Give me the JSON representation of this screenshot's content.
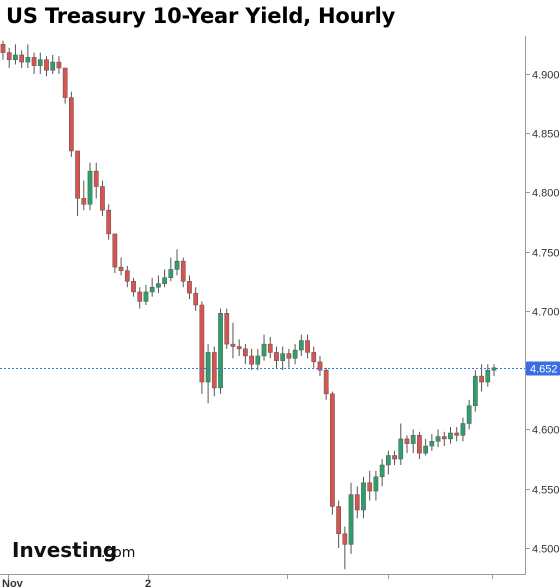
{
  "chart_data": {
    "type": "candlestick",
    "title": "US Treasury 10-Year Yield, Hourly",
    "ylim": [
      4.478,
      4.932
    ],
    "y_ticks": [
      4.5,
      4.55,
      4.6,
      4.65,
      4.7,
      4.75,
      4.8,
      4.85,
      4.9
    ],
    "y_tick_labels": [
      "4.500",
      "4.550",
      "4.600",
      "4.650",
      "4.700",
      "4.750",
      "4.800",
      "4.850",
      "4.900"
    ],
    "x_labels": [
      "Nov",
      "2"
    ],
    "current_value": 4.652,
    "current_label": "4.652",
    "colors": {
      "up": "#2e9e6a",
      "down": "#d9534f",
      "current_line": "#3b6fe0",
      "axis": "#9a9a9a"
    },
    "grid": false,
    "candles": [
      [
        4.925,
        4.918,
        4.928,
        4.912
      ],
      [
        4.918,
        4.912,
        4.922,
        4.905
      ],
      [
        4.912,
        4.916,
        4.925,
        4.908
      ],
      [
        4.916,
        4.91,
        4.92,
        4.905
      ],
      [
        4.91,
        4.914,
        4.925,
        4.905
      ],
      [
        4.914,
        4.907,
        4.918,
        4.9
      ],
      [
        4.907,
        4.912,
        4.918,
        4.9
      ],
      [
        4.912,
        4.903,
        4.915,
        4.898
      ],
      [
        4.903,
        4.91,
        4.916,
        4.9
      ],
      [
        4.91,
        4.905,
        4.915,
        4.9
      ],
      [
        4.905,
        4.88,
        4.905,
        4.875
      ],
      [
        4.88,
        4.835,
        4.885,
        4.83
      ],
      [
        4.835,
        4.795,
        4.835,
        4.78
      ],
      [
        4.795,
        4.79,
        4.81,
        4.785
      ],
      [
        4.79,
        4.818,
        4.825,
        4.785
      ],
      [
        4.818,
        4.805,
        4.825,
        4.795
      ],
      [
        4.805,
        4.785,
        4.81,
        4.78
      ],
      [
        4.785,
        4.765,
        4.79,
        4.76
      ],
      [
        4.765,
        4.737,
        4.765,
        4.732
      ],
      [
        4.737,
        4.734,
        4.745,
        4.73
      ],
      [
        4.734,
        4.725,
        4.738,
        4.72
      ],
      [
        4.725,
        4.716,
        4.728,
        4.712
      ],
      [
        4.716,
        4.708,
        4.72,
        4.702
      ],
      [
        4.708,
        4.716,
        4.722,
        4.705
      ],
      [
        4.716,
        4.72,
        4.728,
        4.712
      ],
      [
        4.72,
        4.723,
        4.73,
        4.715
      ],
      [
        4.723,
        4.728,
        4.735,
        4.72
      ],
      [
        4.728,
        4.735,
        4.745,
        4.725
      ],
      [
        4.735,
        4.742,
        4.752,
        4.73
      ],
      [
        4.742,
        4.725,
        4.745,
        4.72
      ],
      [
        4.725,
        4.715,
        4.73,
        4.71
      ],
      [
        4.715,
        4.705,
        4.72,
        4.7
      ],
      [
        4.705,
        4.64,
        4.708,
        4.63
      ],
      [
        4.64,
        4.665,
        4.672,
        4.622
      ],
      [
        4.665,
        4.635,
        4.67,
        4.628
      ],
      [
        4.635,
        4.698,
        4.702,
        4.63
      ],
      [
        4.698,
        4.672,
        4.702,
        4.668
      ],
      [
        4.672,
        4.67,
        4.69,
        4.66
      ],
      [
        4.67,
        4.668,
        4.676,
        4.662
      ],
      [
        4.668,
        4.662,
        4.672,
        4.655
      ],
      [
        4.662,
        4.655,
        4.668,
        4.65
      ],
      [
        4.655,
        4.662,
        4.668,
        4.65
      ],
      [
        4.662,
        4.672,
        4.68,
        4.658
      ],
      [
        4.672,
        4.665,
        4.678,
        4.66
      ],
      [
        4.665,
        4.658,
        4.67,
        4.652
      ],
      [
        4.658,
        4.664,
        4.67,
        4.65
      ],
      [
        4.664,
        4.66,
        4.668,
        4.652
      ],
      [
        4.66,
        4.667,
        4.672,
        4.655
      ],
      [
        4.667,
        4.675,
        4.68,
        4.662
      ],
      [
        4.675,
        4.665,
        4.68,
        4.66
      ],
      [
        4.665,
        4.657,
        4.67,
        4.652
      ],
      [
        4.657,
        4.65,
        4.662,
        4.645
      ],
      [
        4.65,
        4.63,
        4.652,
        4.625
      ],
      [
        4.63,
        4.535,
        4.632,
        4.528
      ],
      [
        4.535,
        4.512,
        4.54,
        4.5
      ],
      [
        4.512,
        4.503,
        4.518,
        4.482
      ],
      [
        4.503,
        4.545,
        4.555,
        4.495
      ],
      [
        4.545,
        4.532,
        4.552,
        4.525
      ],
      [
        4.532,
        4.555,
        4.56,
        4.525
      ],
      [
        4.555,
        4.548,
        4.565,
        4.54
      ],
      [
        4.548,
        4.56,
        4.565,
        4.54
      ],
      [
        4.56,
        4.57,
        4.575,
        4.552
      ],
      [
        4.57,
        4.578,
        4.582,
        4.562
      ],
      [
        4.578,
        4.575,
        4.582,
        4.57
      ],
      [
        4.575,
        4.592,
        4.605,
        4.57
      ],
      [
        4.592,
        4.588,
        4.595,
        4.58
      ],
      [
        4.588,
        4.595,
        4.6,
        4.58
      ],
      [
        4.595,
        4.58,
        4.598,
        4.575
      ],
      [
        4.58,
        4.586,
        4.592,
        4.578
      ],
      [
        4.586,
        4.59,
        4.596,
        4.582
      ],
      [
        4.59,
        4.594,
        4.6,
        4.585
      ],
      [
        4.594,
        4.592,
        4.598,
        4.586
      ],
      [
        4.592,
        4.597,
        4.602,
        4.588
      ],
      [
        4.597,
        4.595,
        4.602,
        4.59
      ],
      [
        4.595,
        4.605,
        4.61,
        4.59
      ],
      [
        4.605,
        4.62,
        4.625,
        4.6
      ],
      [
        4.62,
        4.645,
        4.65,
        4.615
      ],
      [
        4.645,
        4.64,
        4.655,
        4.632
      ],
      [
        4.64,
        4.65,
        4.655,
        4.636
      ],
      [
        4.65,
        4.652,
        4.655,
        4.645
      ]
    ]
  },
  "brand": {
    "name": "Investing",
    "suffix": ".com"
  }
}
